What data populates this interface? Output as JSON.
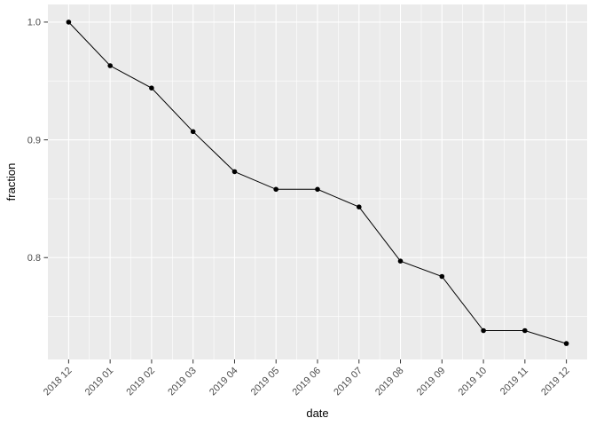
{
  "chart_data": {
    "type": "line",
    "title": "",
    "xlabel": "date",
    "ylabel": "fraction",
    "categories": [
      "2018 12",
      "2019 01",
      "2019 02",
      "2019 03",
      "2019 04",
      "2019 05",
      "2019 06",
      "2019 07",
      "2019 08",
      "2019 09",
      "2019 10",
      "2019 11",
      "2019 12"
    ],
    "series": [
      {
        "name": "fraction",
        "values": [
          1.0,
          0.963,
          0.944,
          0.907,
          0.873,
          0.858,
          0.858,
          0.843,
          0.797,
          0.784,
          0.738,
          0.738,
          0.727
        ]
      }
    ],
    "ylim": [
      0.7135,
      1.015
    ],
    "y_major_ticks": [
      0.8,
      0.9,
      1.0
    ],
    "y_tick_labels": [
      "0.8",
      "0.9",
      "1.0"
    ],
    "y_minor_ticks": [
      0.75,
      0.85,
      0.95
    ],
    "x_label_angle": 45,
    "grid": "major-and-minor",
    "legend": "none",
    "marker": "point",
    "style": {
      "panel_bg": "#EBEBEB",
      "grid_color": "#FFFFFF",
      "line_color": "#000000",
      "point_color": "#000000",
      "axis_text_color": "#4D4D4D",
      "axis_title_color": "#000000",
      "tick_color": "#333333",
      "outer_bg": "#FFFFFF"
    }
  }
}
